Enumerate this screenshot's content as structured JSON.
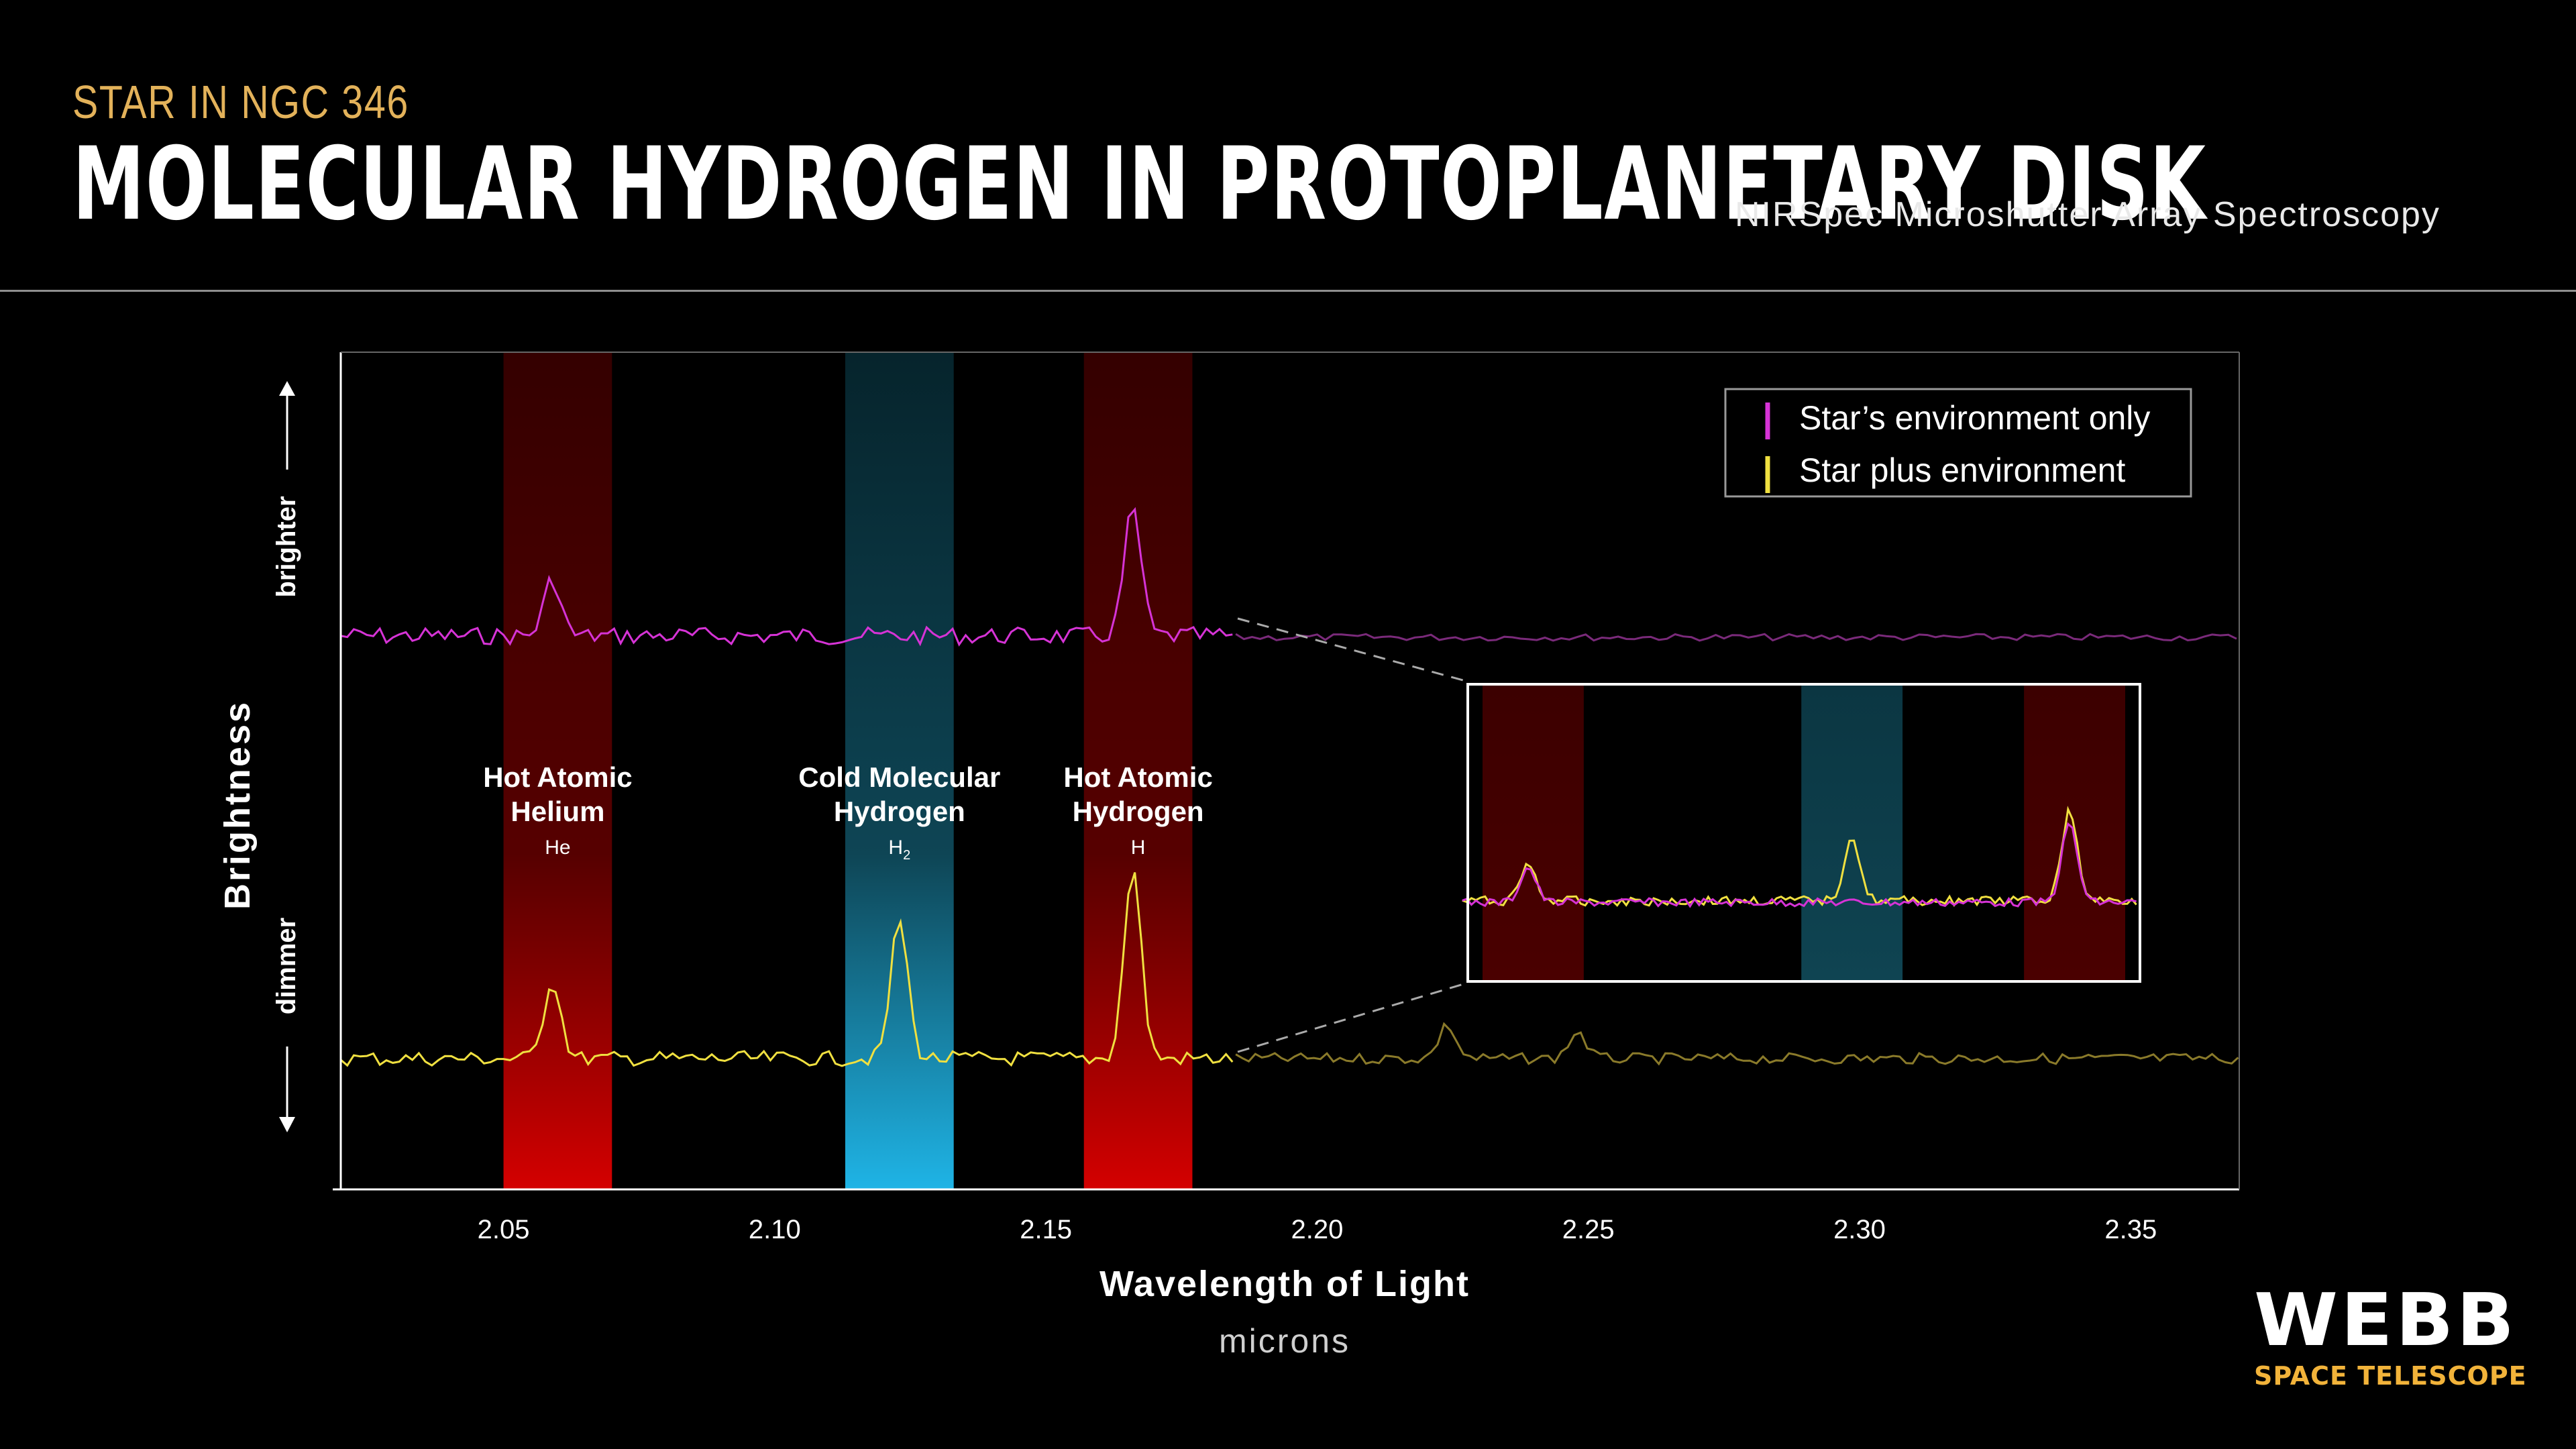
{
  "header": {
    "kicker": "STAR IN NGC 346",
    "title": "MOLECULAR HYDROGEN IN PROTOPLANETARY DISK",
    "subtitle": "NIRSpec Microshutter Array Spectroscopy"
  },
  "logo": {
    "main": "WEBB",
    "sub": "SPACE TELESCOPE"
  },
  "colors": {
    "background": "#000000",
    "environment_line": "#d633d6",
    "star_line": "#f0e040",
    "star_line_dim": "#8a7a2a",
    "hot_band": "#c00000",
    "cold_band": "#1fa8d8",
    "accent_gold": "#e3b25a"
  },
  "chart_data": {
    "type": "line",
    "xlabel": "Wavelength of Light",
    "xunit": "microns",
    "ylabel": "Brightness",
    "y_brighter": "brighter",
    "y_dimmer": "dimmer",
    "xlim": [
      2.02,
      2.37
    ],
    "x_ticks": [
      "2.05",
      "2.10",
      "2.15",
      "2.20",
      "2.25",
      "2.30",
      "2.35"
    ],
    "grid": false,
    "legend_position": "top-right",
    "legend": [
      "Star’s environment only",
      "Star plus environment"
    ],
    "bands": [
      {
        "label": "Hot Atomic Helium",
        "symbol": "He",
        "x_range": [
          2.05,
          2.07
        ],
        "kind": "hot"
      },
      {
        "label": "Cold Molecular Hydrogen",
        "symbol": "H",
        "symbol_sub": "2",
        "x_range": [
          2.113,
          2.133
        ],
        "kind": "cold"
      },
      {
        "label": "Hot Atomic Hydrogen",
        "symbol": "H",
        "x_range": [
          2.157,
          2.177
        ],
        "kind": "hot"
      }
    ],
    "series": [
      {
        "name": "Star’s environment only",
        "peaks": [
          {
            "x": 2.059,
            "height": 0.4
          },
          {
            "x": 2.166,
            "height": 0.9
          }
        ]
      },
      {
        "name": "Star plus environment",
        "peaks": [
          {
            "x": 2.059,
            "height": 0.45
          },
          {
            "x": 2.123,
            "height": 0.8
          },
          {
            "x": 2.166,
            "height": 1.1
          }
        ]
      }
    ],
    "inset": {
      "x_range": [
        2.05,
        2.177
      ],
      "description_bands": [
        "hot",
        "cold",
        "hot"
      ]
    }
  }
}
